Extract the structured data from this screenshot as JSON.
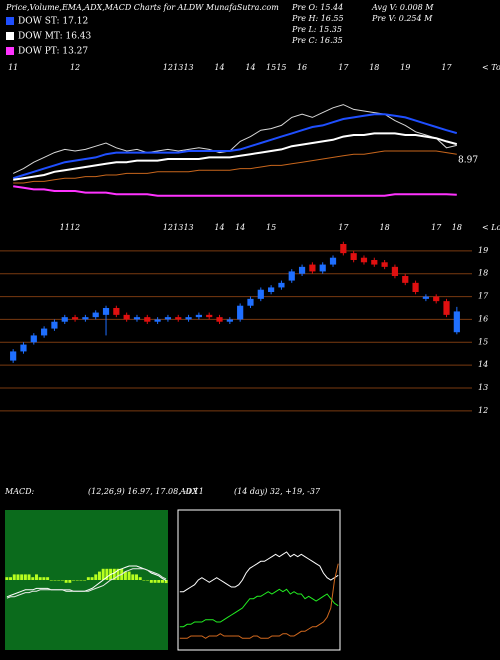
{
  "chart_data": [
    {
      "type": "line",
      "title": "Price,Volume,EMA,ADX,MACD Charts for ALDW MunafaSutra.com",
      "stats": [
        "Pre  O: 15.44",
        "Pre  H: 16.55",
        "Pre  L: 15.35",
        "Pre  C: 16.35",
        "Avg V: 0.008  M",
        "Pre  V: 0.254  M"
      ],
      "annotations": [
        "< Tops",
        "8.97"
      ],
      "categories": [
        "11",
        null,
        null,
        null,
        null,
        null,
        "12",
        null,
        null,
        null,
        null,
        null,
        null,
        null,
        null,
        "12",
        "13",
        "13",
        null,
        null,
        "14",
        null,
        null,
        "14",
        null,
        "15",
        "15",
        null,
        "16",
        null,
        null,
        null,
        "17",
        null,
        null,
        "18",
        null,
        null,
        "19",
        null,
        null,
        null,
        "17",
        null
      ],
      "ylim": [
        12,
        19.5
      ],
      "series": [
        {
          "color": "#d8d8d8",
          "values": [
            14.6,
            14.9,
            15.3,
            15.6,
            15.9,
            16.1,
            16.0,
            16.1,
            16.3,
            16.5,
            16.2,
            16.0,
            16.1,
            15.9,
            16.0,
            16.1,
            16.0,
            16.1,
            16.2,
            16.1,
            15.9,
            16.0,
            16.6,
            16.9,
            17.3,
            17.4,
            17.6,
            18.1,
            18.3,
            18.1,
            18.4,
            18.7,
            18.9,
            18.6,
            18.5,
            18.4,
            18.3,
            17.9,
            17.6,
            17.2,
            17.0,
            16.8,
            16.2,
            16.35
          ]
        },
        {
          "color": "#c8661c",
          "values": [
            14.0,
            14.0,
            14.1,
            14.1,
            14.2,
            14.3,
            14.3,
            14.4,
            14.4,
            14.5,
            14.5,
            14.6,
            14.6,
            14.6,
            14.7,
            14.7,
            14.7,
            14.7,
            14.8,
            14.8,
            14.8,
            14.8,
            14.9,
            14.9,
            15.0,
            15.1,
            15.1,
            15.2,
            15.3,
            15.4,
            15.5,
            15.6,
            15.7,
            15.8,
            15.8,
            15.9,
            16.0,
            16.0,
            16.0,
            16.0,
            16.0,
            16.0,
            15.9,
            15.8
          ]
        },
        {
          "name": "DOW ST: 17.12",
          "color": "#1f4fff",
          "values": [
            14.3,
            14.5,
            14.7,
            14.9,
            15.1,
            15.3,
            15.4,
            15.5,
            15.6,
            15.8,
            15.9,
            15.9,
            15.9,
            15.9,
            15.9,
            15.9,
            15.9,
            16.0,
            16.0,
            16.0,
            16.0,
            16.0,
            16.1,
            16.3,
            16.5,
            16.7,
            16.9,
            17.1,
            17.3,
            17.5,
            17.6,
            17.8,
            18.0,
            18.1,
            18.2,
            18.3,
            18.3,
            18.2,
            18.1,
            17.9,
            17.7,
            17.5,
            17.3,
            17.12
          ]
        },
        {
          "name": "DOW MT: 16.43",
          "color": "#ffffff",
          "values": [
            14.2,
            14.3,
            14.4,
            14.5,
            14.7,
            14.8,
            14.9,
            15.0,
            15.1,
            15.2,
            15.3,
            15.3,
            15.4,
            15.4,
            15.4,
            15.5,
            15.5,
            15.5,
            15.5,
            15.6,
            15.6,
            15.6,
            15.7,
            15.8,
            15.9,
            16.0,
            16.1,
            16.3,
            16.4,
            16.5,
            16.6,
            16.7,
            16.9,
            17.0,
            17.0,
            17.1,
            17.1,
            17.1,
            17.0,
            17.0,
            16.9,
            16.8,
            16.6,
            16.43
          ]
        },
        {
          "name": "DOW PT: 13.27",
          "color": "#ff33ff",
          "values": [
            13.8,
            13.7,
            13.6,
            13.6,
            13.5,
            13.5,
            13.5,
            13.4,
            13.4,
            13.4,
            13.3,
            13.3,
            13.3,
            13.3,
            13.2,
            13.2,
            13.2,
            13.2,
            13.2,
            13.2,
            13.2,
            13.2,
            13.2,
            13.2,
            13.2,
            13.2,
            13.2,
            13.2,
            13.2,
            13.2,
            13.2,
            13.2,
            13.2,
            13.2,
            13.2,
            13.2,
            13.2,
            13.3,
            13.3,
            13.3,
            13.3,
            13.3,
            13.3,
            13.27
          ]
        }
      ]
    },
    {
      "type": "candlestick",
      "annotations": [
        "< Lows"
      ],
      "categories": [
        null,
        null,
        null,
        null,
        null,
        "11",
        "12",
        null,
        null,
        null,
        null,
        null,
        null,
        null,
        null,
        "12",
        "13",
        "13",
        null,
        null,
        "14",
        null,
        "14",
        null,
        null,
        "15",
        null,
        null,
        null,
        null,
        null,
        null,
        "17",
        null,
        null,
        null,
        "18",
        null,
        null,
        null,
        null,
        "17",
        null,
        "18"
      ],
      "up_color": "#1f6fff",
      "down_color": "#e01010",
      "grid_color": "#7a3a10",
      "ylim": [
        11.6,
        19.65
      ],
      "yticks": [
        12,
        13,
        14,
        15,
        16,
        17,
        18,
        19
      ],
      "grid": true,
      "open": [
        14.2,
        14.6,
        15.0,
        15.3,
        15.6,
        15.9,
        16.1,
        16.0,
        16.1,
        16.2,
        16.5,
        16.2,
        16.0,
        16.1,
        15.9,
        16.0,
        16.1,
        16.0,
        16.1,
        16.2,
        16.1,
        15.9,
        16.0,
        16.6,
        16.9,
        17.2,
        17.4,
        17.7,
        18.0,
        18.4,
        18.1,
        18.4,
        19.3,
        18.9,
        18.7,
        18.6,
        18.5,
        18.3,
        17.9,
        17.6,
        16.9,
        17.0,
        16.8,
        15.44
      ],
      "high": [
        14.7,
        15.0,
        15.4,
        15.7,
        16.0,
        16.2,
        16.2,
        16.2,
        16.4,
        16.6,
        16.6,
        16.3,
        16.2,
        16.2,
        16.1,
        16.2,
        16.2,
        16.2,
        16.3,
        16.3,
        16.2,
        16.1,
        16.7,
        17.0,
        17.4,
        17.5,
        17.7,
        18.2,
        18.4,
        18.5,
        18.5,
        18.8,
        19.4,
        19.0,
        18.8,
        18.7,
        18.6,
        18.4,
        18.0,
        17.7,
        17.1,
        17.1,
        16.9,
        16.55
      ],
      "low": [
        14.1,
        14.5,
        14.9,
        15.2,
        15.5,
        15.8,
        15.9,
        15.9,
        16.0,
        15.3,
        16.1,
        15.9,
        15.9,
        15.8,
        15.8,
        15.9,
        15.9,
        15.9,
        16.0,
        16.0,
        15.8,
        15.8,
        15.9,
        16.5,
        16.8,
        17.1,
        17.3,
        17.6,
        17.9,
        18.0,
        18.0,
        18.3,
        18.8,
        18.5,
        18.4,
        18.3,
        18.2,
        17.8,
        17.5,
        17.1,
        16.8,
        16.7,
        16.1,
        15.35
      ],
      "close": [
        14.6,
        14.9,
        15.3,
        15.6,
        15.9,
        16.1,
        16.0,
        16.1,
        16.3,
        16.5,
        16.2,
        16.0,
        16.1,
        15.9,
        16.0,
        16.1,
        16.0,
        16.1,
        16.2,
        16.1,
        15.9,
        16.0,
        16.6,
        16.9,
        17.3,
        17.4,
        17.6,
        18.1,
        18.3,
        18.1,
        18.4,
        18.7,
        18.9,
        18.6,
        18.5,
        18.4,
        18.3,
        17.9,
        17.6,
        17.2,
        17.0,
        16.8,
        16.2,
        16.35
      ]
    },
    {
      "type": "macd",
      "title": "MACD:",
      "subtitle": "(12,26,9) 16.97, 17.08, -0.11",
      "background": "#0b6b1c",
      "ylim": [
        12,
        22
      ],
      "y2lim": [
        -2.5,
        2.5
      ],
      "series": [
        {
          "color": "#b8ff20",
          "axis": "y2",
          "values": [
            0.1,
            0.1,
            0.2,
            0.2,
            0.2,
            0.2,
            0.2,
            0.1,
            0.2,
            0.1,
            0.1,
            0.1,
            0,
            0,
            0,
            0,
            -0.1,
            -0.1,
            0,
            0,
            0,
            0,
            0.1,
            0.1,
            0.2,
            0.3,
            0.4,
            0.4,
            0.4,
            0.4,
            0.4,
            0.4,
            0.3,
            0.3,
            0.2,
            0.2,
            0.1,
            0,
            0,
            -0.1,
            -0.1,
            -0.1,
            -0.1,
            -0.11
          ]
        },
        {
          "color": "#ffffff",
          "values": [
            15.8,
            15.9,
            16.0,
            16.1,
            16.2,
            16.3,
            16.3,
            16.3,
            16.4,
            16.4,
            16.4,
            16.4,
            16.3,
            16.3,
            16.3,
            16.3,
            16.2,
            16.2,
            16.2,
            16.2,
            16.2,
            16.2,
            16.3,
            16.4,
            16.6,
            16.8,
            17.0,
            17.2,
            17.4,
            17.5,
            17.7,
            17.8,
            17.9,
            18.0,
            18.0,
            18.0,
            17.9,
            17.8,
            17.7,
            17.5,
            17.4,
            17.3,
            17.1,
            16.97
          ]
        },
        {
          "color": "#e8e8e8",
          "values": [
            15.7,
            15.8,
            15.8,
            15.9,
            16.0,
            16.1,
            16.1,
            16.2,
            16.2,
            16.3,
            16.3,
            16.3,
            16.3,
            16.3,
            16.3,
            16.3,
            16.3,
            16.3,
            16.2,
            16.2,
            16.2,
            16.2,
            16.2,
            16.3,
            16.4,
            16.5,
            16.6,
            16.8,
            17.0,
            17.1,
            17.3,
            17.4,
            17.6,
            17.7,
            17.8,
            17.8,
            17.8,
            17.8,
            17.7,
            17.6,
            17.5,
            17.4,
            17.2,
            17.08
          ]
        }
      ]
    },
    {
      "type": "line",
      "title": "ADX",
      "subtitle": "(14 day) 32, +19, -37",
      "border": "#ffffff",
      "ylim": [
        0,
        60
      ],
      "series": [
        {
          "color": "#ffffff",
          "values": [
            25,
            25,
            26,
            27,
            28,
            30,
            31,
            30,
            29,
            30,
            31,
            30,
            29,
            28,
            27,
            27,
            28,
            30,
            33,
            35,
            36,
            37,
            38,
            38,
            39,
            40,
            41,
            40,
            41,
            42,
            40,
            41,
            40,
            41,
            40,
            39,
            38,
            37,
            36,
            33,
            31,
            30,
            31,
            32
          ]
        },
        {
          "color": "#22ee22",
          "values": [
            10,
            10,
            11,
            11,
            12,
            12,
            12,
            13,
            13,
            13,
            12,
            12,
            13,
            14,
            15,
            16,
            17,
            18,
            20,
            22,
            22,
            23,
            23,
            24,
            25,
            24,
            25,
            26,
            25,
            26,
            24,
            25,
            24,
            24,
            22,
            23,
            22,
            21,
            22,
            23,
            24,
            22,
            20,
            19
          ]
        },
        {
          "color": "#d2691e",
          "values": [
            5,
            5,
            5,
            6,
            6,
            6,
            6,
            5,
            6,
            6,
            6,
            7,
            6,
            6,
            6,
            6,
            6,
            5,
            5,
            5,
            6,
            6,
            5,
            5,
            5,
            6,
            6,
            6,
            7,
            7,
            6,
            6,
            7,
            8,
            8,
            9,
            10,
            10,
            11,
            12,
            14,
            18,
            30,
            37
          ]
        }
      ]
    }
  ]
}
